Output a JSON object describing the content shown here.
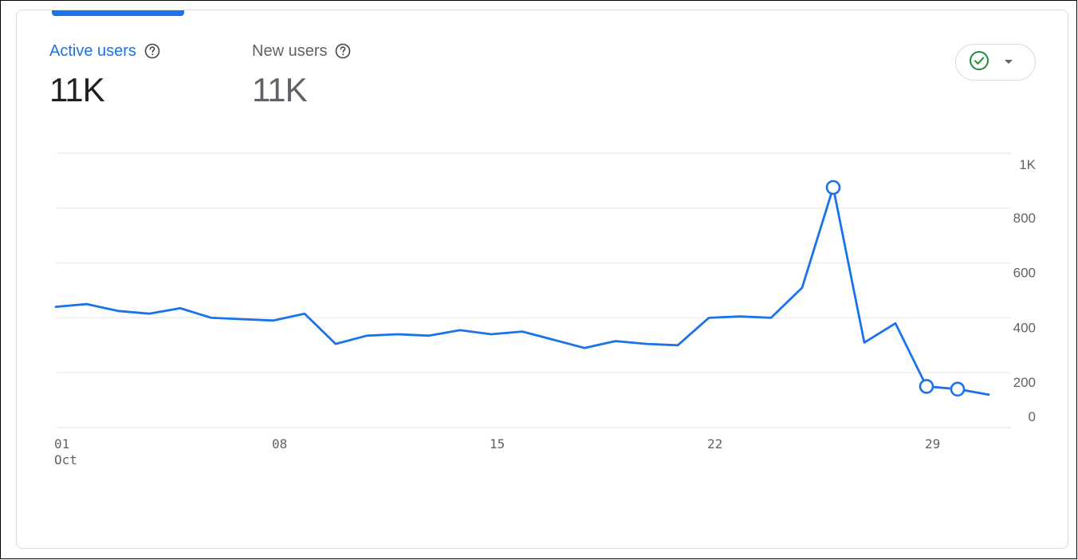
{
  "metrics": {
    "active": {
      "label": "Active users",
      "value": "11K",
      "help_icon": "help-circle-icon"
    },
    "new": {
      "label": "New users",
      "value": "11K",
      "help_icon": "help-circle-icon"
    }
  },
  "status_chip": {
    "icon": "check-circle-icon",
    "dropdown_icon": "caret-down-icon",
    "icon_color": "#1e8e3e"
  },
  "colors": {
    "accent": "#1a73e8",
    "grid": "#e8eaed",
    "text_secondary": "#5f6368"
  },
  "chart_data": {
    "type": "line",
    "x": [
      1,
      2,
      3,
      4,
      5,
      6,
      7,
      8,
      9,
      10,
      11,
      12,
      13,
      14,
      15,
      16,
      17,
      18,
      19,
      20,
      21,
      22,
      23,
      24,
      25,
      26,
      27,
      28,
      29,
      30,
      31
    ],
    "series": [
      {
        "values": [
          440,
          450,
          425,
          415,
          435,
          400,
          395,
          390,
          415,
          305,
          335,
          340,
          335,
          355,
          340,
          350,
          320,
          290,
          315,
          305,
          300,
          400,
          405,
          400,
          510,
          875,
          310,
          380,
          150,
          140,
          120
        ],
        "markers_at": [
          26,
          29,
          30
        ],
        "color": "#1a73e8"
      }
    ],
    "ylim": [
      0,
      1000
    ],
    "yticks": [
      0,
      200,
      400,
      600,
      800,
      1000
    ],
    "ytick_labels": [
      "0",
      "200",
      "400",
      "600",
      "800",
      "1K"
    ],
    "xticks": [
      1,
      8,
      15,
      22,
      29
    ],
    "xtick_labels": [
      "01",
      "08",
      "15",
      "22",
      "29"
    ],
    "xtick_sublabel": "Oct",
    "yaxis_position": "right",
    "grid": true
  }
}
